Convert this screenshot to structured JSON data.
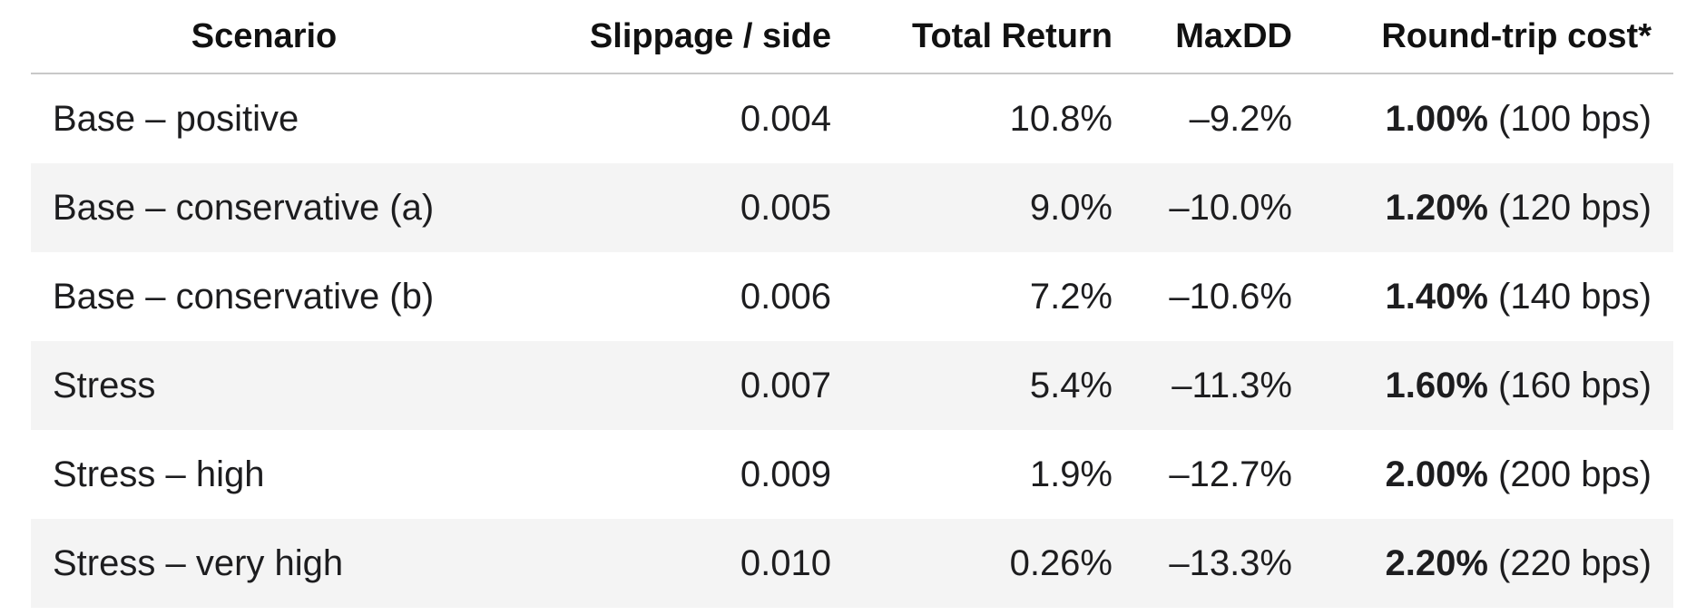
{
  "table": {
    "headers": {
      "scenario": "Scenario",
      "slippage": "Slippage / side",
      "total_return": "Total Return",
      "maxdd": "MaxDD",
      "cost": "Round-trip cost*"
    },
    "rows": [
      {
        "scenario": "Base – positive",
        "slippage": "0.004",
        "total_return": "10.8%",
        "maxdd": "–9.2%",
        "cost_pct": "1.00%",
        "cost_bps": "(100 bps)"
      },
      {
        "scenario": "Base – conservative (a)",
        "slippage": "0.005",
        "total_return": "9.0%",
        "maxdd": "–10.0%",
        "cost_pct": "1.20%",
        "cost_bps": "(120 bps)"
      },
      {
        "scenario": "Base – conservative (b)",
        "slippage": "0.006",
        "total_return": "7.2%",
        "maxdd": "–10.6%",
        "cost_pct": "1.40%",
        "cost_bps": "(140 bps)"
      },
      {
        "scenario": "Stress",
        "slippage": "0.007",
        "total_return": "5.4%",
        "maxdd": "–11.3%",
        "cost_pct": "1.60%",
        "cost_bps": "(160 bps)"
      },
      {
        "scenario": "Stress – high",
        "slippage": "0.009",
        "total_return": "1.9%",
        "maxdd": "–12.7%",
        "cost_pct": "2.00%",
        "cost_bps": "(200 bps)"
      },
      {
        "scenario": "Stress – very high",
        "slippage": "0.010",
        "total_return": "0.26%",
        "maxdd": "–13.3%",
        "cost_pct": "2.20%",
        "cost_bps": "(220 bps)"
      }
    ]
  },
  "colors": {
    "header_rule": "#c8c8c8",
    "row_shade": "#f4f4f4",
    "text": "#1d1d1f"
  }
}
